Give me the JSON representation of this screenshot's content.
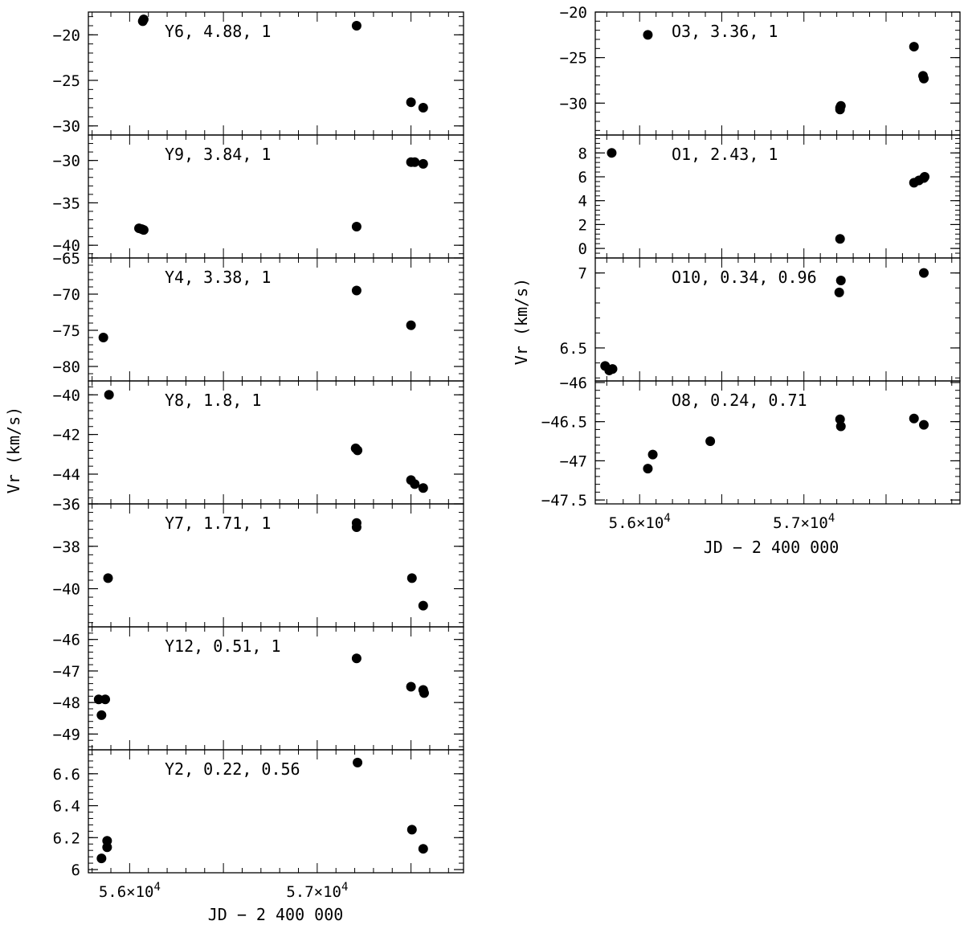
{
  "figure": {
    "left_column": {
      "xlabel": "JD − 2 400 000",
      "ylabel": "Vr (km/s)",
      "x_ticks": [
        {
          "value": 56000,
          "label_base": "5.6×10",
          "label_exp": "4"
        },
        {
          "value": 57000,
          "label_base": "5.7×10",
          "label_exp": "4"
        }
      ]
    },
    "right_column": {
      "xlabel": "JD − 2 400 000",
      "ylabel": "Vr (km/s)",
      "x_ticks": [
        {
          "value": 56000,
          "label_base": "5.6×10",
          "label_exp": "4"
        },
        {
          "value": 57000,
          "label_base": "5.7×10",
          "label_exp": "4"
        }
      ]
    }
  },
  "chart_data": [
    {
      "type": "scatter",
      "column": "left",
      "label": "Y6, 4.88, 1",
      "xlim": [
        55780,
        57780
      ],
      "ylim": [
        -31,
        -17.5
      ],
      "yticks": [
        {
          "v": -20,
          "t": "−20"
        },
        {
          "v": -25,
          "t": "−25"
        },
        {
          "v": -30,
          "t": "−30"
        }
      ],
      "points": [
        [
          56070,
          -18.5
        ],
        [
          56075,
          -18.3
        ],
        [
          57210,
          -19.0
        ],
        [
          57500,
          -27.4
        ],
        [
          57565,
          -28.0
        ]
      ]
    },
    {
      "type": "scatter",
      "column": "left",
      "label": "Y9, 3.84, 1",
      "xlim": [
        55780,
        57780
      ],
      "ylim": [
        -41.5,
        -27
      ],
      "yticks": [
        {
          "v": -30,
          "t": "−30"
        },
        {
          "v": -35,
          "t": "−35"
        },
        {
          "v": -40,
          "t": "−40"
        }
      ],
      "points": [
        [
          56050,
          -38.0
        ],
        [
          56065,
          -38.1
        ],
        [
          56075,
          -38.2
        ],
        [
          57210,
          -37.8
        ],
        [
          57500,
          -30.2
        ],
        [
          57520,
          -30.2
        ],
        [
          57565,
          -30.4
        ]
      ]
    },
    {
      "type": "scatter",
      "column": "left",
      "label": "Y4, 3.38, 1",
      "xlim": [
        55780,
        57780
      ],
      "ylim": [
        -82,
        -65
      ],
      "yticks": [
        {
          "v": -65,
          "t": "−65"
        },
        {
          "v": -70,
          "t": "−70"
        },
        {
          "v": -75,
          "t": "−75"
        },
        {
          "v": -80,
          "t": "−80"
        }
      ],
      "points": [
        [
          55860,
          -76.0
        ],
        [
          57210,
          -69.5
        ],
        [
          57500,
          -74.3
        ]
      ]
    },
    {
      "type": "scatter",
      "column": "left",
      "label": "Y8, 1.8, 1",
      "xlim": [
        55780,
        57780
      ],
      "ylim": [
        -45.5,
        -39.3
      ],
      "yticks": [
        {
          "v": -40,
          "t": "−40"
        },
        {
          "v": -42,
          "t": "−42"
        },
        {
          "v": -44,
          "t": "−44"
        }
      ],
      "points": [
        [
          55890,
          -40.0
        ],
        [
          57205,
          -42.7
        ],
        [
          57215,
          -42.8
        ],
        [
          57500,
          -44.3
        ],
        [
          57520,
          -44.5
        ],
        [
          57565,
          -44.7
        ]
      ]
    },
    {
      "type": "scatter",
      "column": "left",
      "label": "Y7, 1.71, 1",
      "xlim": [
        55780,
        57780
      ],
      "ylim": [
        -41.8,
        -36
      ],
      "yticks": [
        {
          "v": -36,
          "t": "−36"
        },
        {
          "v": -38,
          "t": "−38"
        },
        {
          "v": -40,
          "t": "−40"
        }
      ],
      "points": [
        [
          55885,
          -39.5
        ],
        [
          57210,
          -36.9
        ],
        [
          57210,
          -37.1
        ],
        [
          57505,
          -39.5
        ],
        [
          57565,
          -40.8
        ]
      ]
    },
    {
      "type": "scatter",
      "column": "left",
      "label": "Y12, 0.51, 1",
      "xlim": [
        55780,
        57780
      ],
      "ylim": [
        -49.5,
        -45.6
      ],
      "yticks": [
        {
          "v": -46,
          "t": "−46"
        },
        {
          "v": -47,
          "t": "−47"
        },
        {
          "v": -48,
          "t": "−48"
        },
        {
          "v": -49,
          "t": "−49"
        }
      ],
      "points": [
        [
          55835,
          -47.9
        ],
        [
          55870,
          -47.9
        ],
        [
          55850,
          -48.4
        ],
        [
          57210,
          -46.6
        ],
        [
          57500,
          -47.5
        ],
        [
          57565,
          -47.6
        ],
        [
          57570,
          -47.7
        ]
      ]
    },
    {
      "type": "scatter",
      "column": "left",
      "label": "Y2, 0.22, 0.56",
      "xlim": [
        55780,
        57780
      ],
      "ylim": [
        5.98,
        6.75
      ],
      "yticks": [
        {
          "v": 6.0,
          "t": "6"
        },
        {
          "v": 6.2,
          "t": "6.2"
        },
        {
          "v": 6.4,
          "t": "6.4"
        },
        {
          "v": 6.6,
          "t": "6.6"
        }
      ],
      "points": [
        [
          55850,
          6.07
        ],
        [
          55880,
          6.14
        ],
        [
          55880,
          6.18
        ],
        [
          57215,
          6.67
        ],
        [
          57505,
          6.25
        ],
        [
          57565,
          6.13
        ]
      ]
    },
    {
      "type": "scatter",
      "column": "right",
      "label": "O3, 3.36, 1",
      "xlim": [
        55730,
        57950
      ],
      "ylim": [
        -33.5,
        -20
      ],
      "yticks": [
        {
          "v": -20,
          "t": "−20"
        },
        {
          "v": -25,
          "t": "−25"
        },
        {
          "v": -30,
          "t": "−30"
        }
      ],
      "points": [
        [
          56050,
          -22.5
        ],
        [
          57220,
          -30.5
        ],
        [
          57220,
          -30.7
        ],
        [
          57225,
          -30.3
        ],
        [
          57670,
          -23.8
        ],
        [
          57725,
          -27.0
        ],
        [
          57730,
          -27.3
        ]
      ]
    },
    {
      "type": "scatter",
      "column": "right",
      "label": "O1, 2.43, 1",
      "xlim": [
        55730,
        57950
      ],
      "ylim": [
        -0.8,
        9.5
      ],
      "yticks": [
        {
          "v": 0,
          "t": "0"
        },
        {
          "v": 2,
          "t": "2"
        },
        {
          "v": 4,
          "t": "4"
        },
        {
          "v": 6,
          "t": "6"
        },
        {
          "v": 8,
          "t": "8"
        }
      ],
      "points": [
        [
          55830,
          8.0
        ],
        [
          57220,
          0.8
        ],
        [
          57670,
          5.5
        ],
        [
          57700,
          5.7
        ],
        [
          57730,
          5.9
        ],
        [
          57735,
          6.0
        ]
      ]
    },
    {
      "type": "scatter",
      "column": "right",
      "label": "O10, 0.34, 0.96",
      "xlim": [
        55730,
        57950
      ],
      "ylim": [
        6.28,
        7.1
      ],
      "yticks": [
        {
          "v": 6.5,
          "t": "6.5"
        },
        {
          "v": 7.0,
          "t": "7"
        }
      ],
      "points": [
        [
          55790,
          6.38
        ],
        [
          55815,
          6.35
        ],
        [
          55835,
          6.36
        ],
        [
          57215,
          6.87
        ],
        [
          57225,
          6.95
        ],
        [
          57730,
          7.0
        ]
      ]
    },
    {
      "type": "scatter",
      "column": "right",
      "label": "O8, 0.24, 0.71",
      "xlim": [
        55730,
        57950
      ],
      "ylim": [
        -47.55,
        -45.98
      ],
      "yticks": [
        {
          "v": -46,
          "t": "−46"
        },
        {
          "v": -46.5,
          "t": "−46.5"
        },
        {
          "v": -47,
          "t": "−47"
        },
        {
          "v": -47.5,
          "t": "−47.5"
        }
      ],
      "points": [
        [
          56050,
          -47.1
        ],
        [
          56080,
          -46.92
        ],
        [
          56430,
          -46.75
        ],
        [
          57220,
          -46.47
        ],
        [
          57225,
          -46.56
        ],
        [
          57670,
          -46.46
        ],
        [
          57730,
          -46.54
        ]
      ]
    }
  ]
}
